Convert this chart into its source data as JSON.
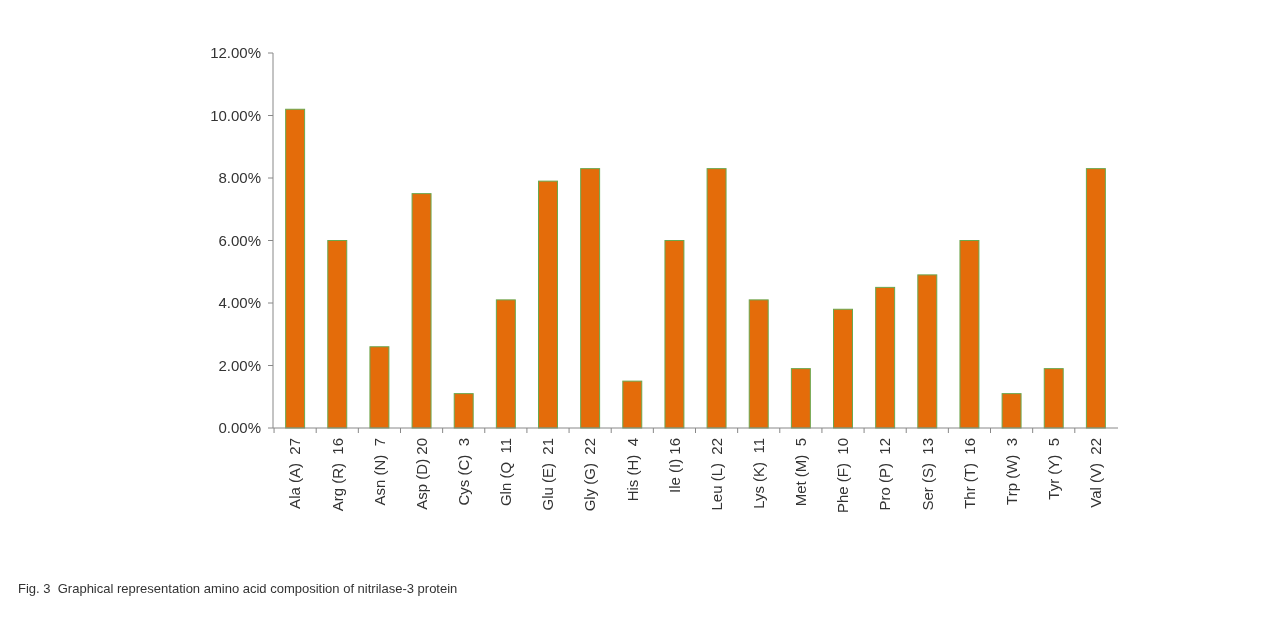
{
  "chart_data": {
    "type": "bar",
    "categories": [
      "Ala (A)  27",
      "Arg (R)  16",
      "Asn (N)  7",
      "Asp (D) 20",
      "Cys (C)  3",
      "Gln (Q  11",
      "Glu (E)  21",
      "Gly (G)  22",
      "His (H)  4",
      "Ile (I) 16",
      "Leu (L)  22",
      "Lys (K)  11",
      "Met (M)  5",
      "Phe (F)  10",
      "Pro (P)  12",
      "Ser (S)  13",
      "Thr (T)  16",
      "Trp (W)  3",
      "Tyr (Y)  5",
      "Val (V)  22"
    ],
    "values": [
      10.2,
      6.0,
      2.6,
      7.5,
      1.1,
      4.1,
      7.9,
      8.3,
      1.5,
      6.0,
      8.3,
      4.1,
      1.9,
      3.8,
      4.5,
      4.9,
      6.0,
      1.1,
      1.9,
      8.3
    ],
    "color": "#e46c0a",
    "ylim": [
      0,
      12
    ],
    "yticks": [
      {
        "value": 0,
        "label": "0.00%"
      },
      {
        "value": 2,
        "label": "2.00%"
      },
      {
        "value": 4,
        "label": "4.00%"
      },
      {
        "value": 6,
        "label": "6.00%"
      },
      {
        "value": 8,
        "label": "8.00%"
      },
      {
        "value": 10,
        "label": "10.00%"
      },
      {
        "value": 12,
        "label": "12.00%"
      }
    ],
    "annotations": [
      "Fig. 3  Graphical representation amino acid composition of nitrilase-3 protein"
    ]
  }
}
